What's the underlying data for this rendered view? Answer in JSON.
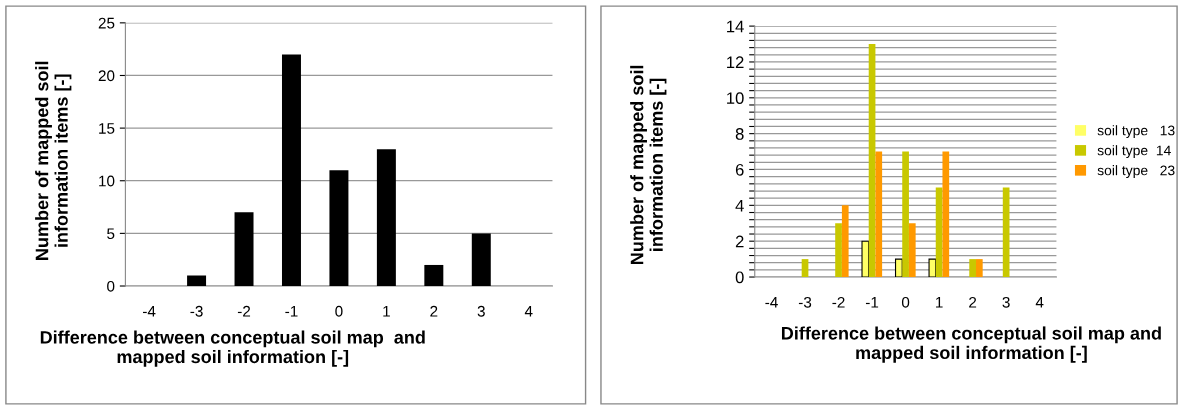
{
  "chart_data": [
    {
      "type": "bar",
      "categories": [
        "-4",
        "-3",
        "-2",
        "-1",
        "0",
        "1",
        "2",
        "3",
        "4"
      ],
      "series": [
        {
          "color": "#000000",
          "values": [
            0,
            1,
            7,
            22,
            11,
            13,
            2,
            5,
            0
          ]
        }
      ],
      "xlabel": "Difference between conceptual soil map  and mapped soil information [-]",
      "ylabel": "Number of mapped soil information items [-]",
      "ylim": [
        0,
        25
      ],
      "yticks": [
        0,
        5,
        10,
        15,
        20,
        25
      ],
      "grid": "y",
      "legend": false
    },
    {
      "type": "bar",
      "categories": [
        "-4",
        "-3",
        "-2",
        "-1",
        "0",
        "1",
        "2",
        "3",
        "4"
      ],
      "series": [
        {
          "name": "soil type   13",
          "color": "#ffff66",
          "values": [
            0,
            0,
            0,
            2,
            1,
            1,
            0,
            0,
            0
          ]
        },
        {
          "name": "soil type  14",
          "color": "#c8c800",
          "values": [
            0,
            1,
            3,
            13,
            7,
            5,
            1,
            5,
            0
          ]
        },
        {
          "name": "soil type   23",
          "color": "#ff9900",
          "values": [
            0,
            0,
            4,
            7,
            3,
            7,
            1,
            0,
            0
          ]
        }
      ],
      "xlabel": "Difference between conceptual soil map and mapped soil information [-]",
      "ylabel": "Number of mapped soil information items [-]",
      "ylim": [
        0,
        14
      ],
      "yticks": [
        0,
        {
          "value": 0.4,
          "label": null
        },
        {
          "value": 0.8,
          "label": null
        },
        {
          "value": 1.2,
          "label": null
        },
        {
          "value": 1.6,
          "label": null
        },
        2,
        {
          "value": 2.4,
          "label": null
        },
        {
          "value": 2.8,
          "label": null
        },
        {
          "value": 3.2,
          "label": null
        },
        {
          "value": 3.6,
          "label": null
        },
        4,
        {
          "value": 4.4,
          "label": null
        },
        {
          "value": 4.8,
          "label": null
        },
        {
          "value": 5.2,
          "label": null
        },
        {
          "value": 5.6,
          "label": null
        },
        6,
        {
          "value": 6.4,
          "label": null
        },
        {
          "value": 6.8,
          "label": null
        },
        {
          "value": 7.2,
          "label": null
        },
        {
          "value": 7.6,
          "label": null
        },
        8,
        {
          "value": 8.4,
          "label": null
        },
        {
          "value": 8.8,
          "label": null
        },
        {
          "value": 9.2,
          "label": null
        },
        {
          "value": 9.6,
          "label": null
        },
        10,
        {
          "value": 10.4,
          "label": null
        },
        {
          "value": 10.8,
          "label": null
        },
        {
          "value": 11.2,
          "label": null
        },
        {
          "value": 11.6,
          "label": null
        },
        12,
        {
          "value": 12.4,
          "label": null
        },
        {
          "value": 12.8,
          "label": null
        },
        {
          "value": 13.2,
          "label": null
        },
        {
          "value": 13.6,
          "label": null
        },
        14
      ],
      "grid": "y",
      "legend": "right"
    }
  ]
}
